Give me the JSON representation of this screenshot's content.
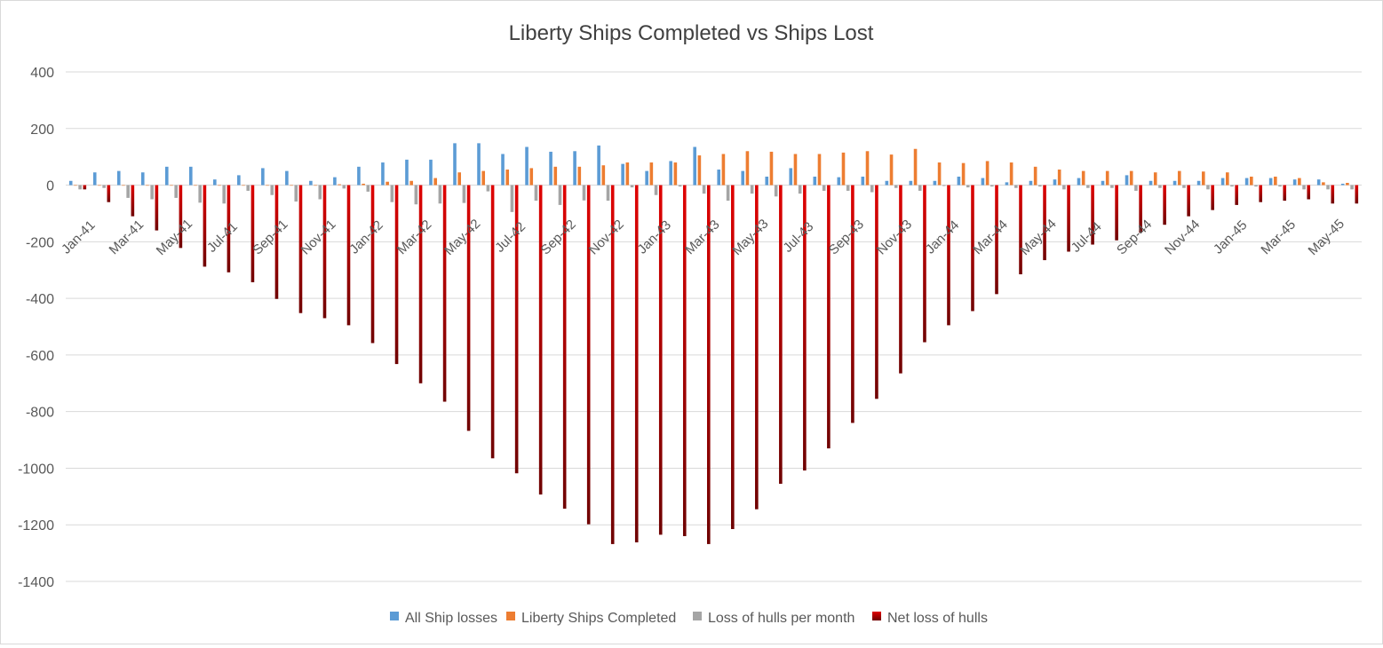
{
  "chart_data": {
    "type": "bar",
    "title": "Liberty Ships Completed vs Ships Lost",
    "xlabel": "",
    "ylabel": "",
    "ylim": [
      -1400,
      400
    ],
    "yticks": [
      400,
      200,
      0,
      -200,
      -400,
      -600,
      -800,
      -1000,
      -1200,
      -1400
    ],
    "grid": true,
    "legend_position": "bottom",
    "tick_labels": [
      "Jan-41",
      "Mar-41",
      "May-41",
      "Jul-41",
      "Sep-41",
      "Nov-41",
      "Jan-42",
      "Mar-42",
      "May-42",
      "Jul-42",
      "Sep-42",
      "Nov-42",
      "Jan-43",
      "Mar-43",
      "May-43",
      "Jul-43",
      "Sep-43",
      "Nov-43",
      "Jan-44",
      "Mar-44",
      "May-44",
      "Jul-44",
      "Sep-44",
      "Nov-44",
      "Jan-45",
      "Mar-45",
      "May-45"
    ],
    "categories": [
      "Jan-41",
      "Feb-41",
      "Mar-41",
      "Apr-41",
      "May-41",
      "Jun-41",
      "Jul-41",
      "Aug-41",
      "Sep-41",
      "Oct-41",
      "Nov-41",
      "Dec-41",
      "Jan-42",
      "Feb-42",
      "Mar-42",
      "Apr-42",
      "May-42",
      "Jun-42",
      "Jul-42",
      "Aug-42",
      "Sep-42",
      "Oct-42",
      "Nov-42",
      "Dec-42",
      "Jan-43",
      "Feb-43",
      "Mar-43",
      "Apr-43",
      "May-43",
      "Jun-43",
      "Jul-43",
      "Aug-43",
      "Sep-43",
      "Oct-43",
      "Nov-43",
      "Dec-43",
      "Jan-44",
      "Feb-44",
      "Mar-44",
      "Apr-44",
      "May-44",
      "Jun-44",
      "Jul-44",
      "Aug-44",
      "Sep-44",
      "Oct-44",
      "Nov-44",
      "Dec-44",
      "Jan-45",
      "Feb-45",
      "Mar-45",
      "Apr-45",
      "May-45",
      "Jun-45"
    ],
    "series": [
      {
        "name": "All Ship losses",
        "color": "#5B9BD5",
        "values": [
          15,
          45,
          50,
          45,
          65,
          65,
          20,
          35,
          60,
          50,
          15,
          28,
          65,
          80,
          90,
          90,
          148,
          148,
          110,
          135,
          118,
          120,
          140,
          75,
          50,
          85,
          135,
          55,
          50,
          30,
          60,
          30,
          28,
          30,
          15,
          15,
          15,
          30,
          25,
          10,
          15,
          20,
          25,
          15,
          35,
          15,
          15,
          15,
          25,
          25,
          25,
          20,
          20,
          5
        ]
      },
      {
        "name": "Liberty Ships Completed",
        "color": "#ED7D31",
        "values": [
          0,
          0,
          0,
          0,
          0,
          0,
          0,
          0,
          0,
          0,
          0,
          3,
          5,
          12,
          15,
          25,
          45,
          50,
          55,
          60,
          65,
          65,
          70,
          80,
          80,
          80,
          105,
          110,
          120,
          118,
          110,
          110,
          115,
          120,
          108,
          128,
          80,
          78,
          85,
          80,
          65,
          55,
          50,
          50,
          50,
          45,
          50,
          48,
          45,
          30,
          30,
          25,
          10,
          8
        ]
      },
      {
        "name": "Loss of hulls per month",
        "color": "#A5A5A5",
        "values": [
          -15,
          -10,
          -45,
          -50,
          -45,
          -62,
          -65,
          -20,
          -35,
          -58,
          -50,
          -12,
          -23,
          -60,
          -68,
          -65,
          -63,
          -22,
          -95,
          -55,
          -70,
          -54,
          -55,
          -8,
          -35,
          -5,
          -30,
          -55,
          -30,
          -40,
          -30,
          -20,
          -20,
          -25,
          -10,
          -20,
          -3,
          -8,
          -5,
          -10,
          -5,
          -15,
          -10,
          -10,
          -20,
          -10,
          -10,
          -15,
          -5,
          -5,
          -5,
          -15,
          -15,
          -15
        ]
      },
      {
        "name": "Net loss of hulls",
        "color": "#C00000",
        "values": [
          -15,
          -60,
          -110,
          -160,
          -222,
          -288,
          -308,
          -343,
          -402,
          -452,
          -470,
          -495,
          -558,
          -632,
          -700,
          -765,
          -868,
          -965,
          -1018,
          -1093,
          -1143,
          -1198,
          -1268,
          -1262,
          -1235,
          -1240,
          -1268,
          -1215,
          -1145,
          -1055,
          -1008,
          -930,
          -840,
          -755,
          -665,
          -555,
          -495,
          -445,
          -385,
          -315,
          -265,
          -235,
          -210,
          -195,
          -168,
          -140,
          -110,
          -88,
          -70,
          -60,
          -55,
          -50,
          -65,
          -65
        ]
      }
    ]
  }
}
